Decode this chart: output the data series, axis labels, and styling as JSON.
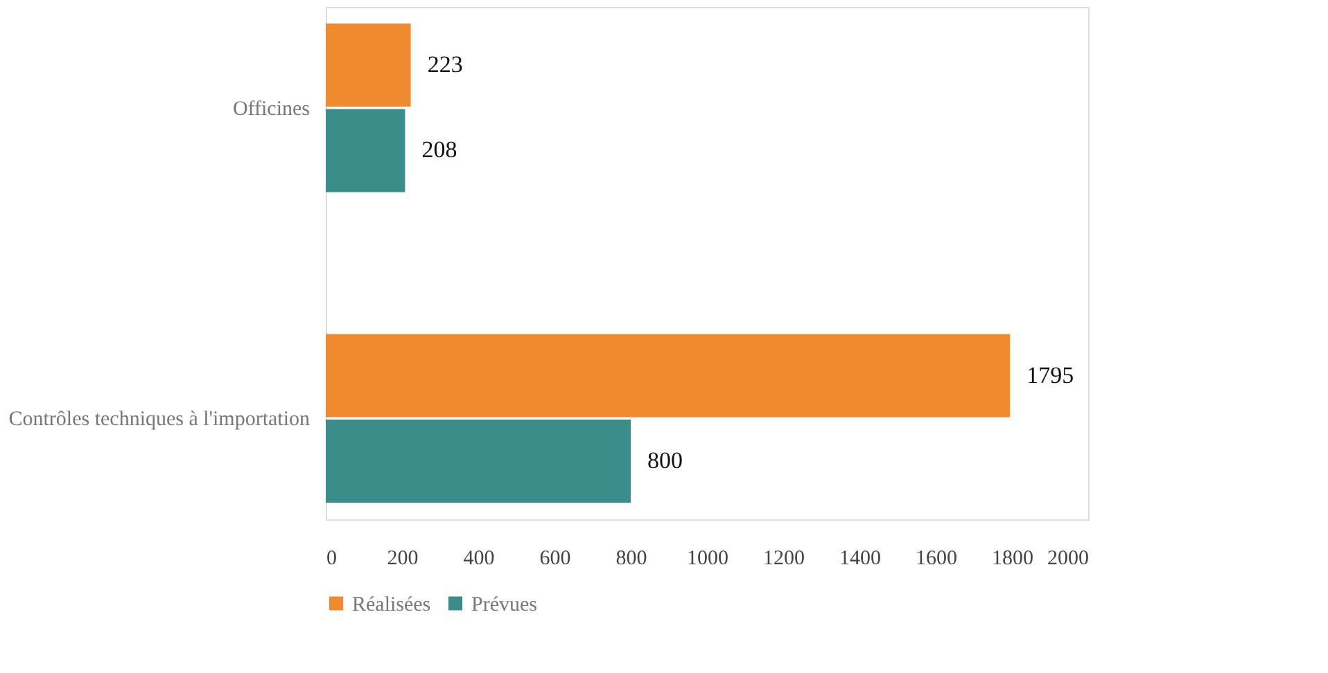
{
  "chart_data": {
    "type": "bar",
    "orientation": "horizontal",
    "categories": [
      "Officines",
      "Contrôles techniques à l'importation"
    ],
    "series": [
      {
        "name": "Réalisées",
        "color": "#f08a2e",
        "values": [
          223,
          1795
        ]
      },
      {
        "name": "Prévues",
        "color": "#3a8c8a",
        "values": [
          208,
          800
        ]
      }
    ],
    "xlim": [
      0,
      2000
    ],
    "xticks": [
      0,
      200,
      400,
      600,
      800,
      1000,
      1200,
      1400,
      1600,
      1800,
      2000
    ],
    "data_labels": true,
    "legend": "bottom",
    "grid": false
  }
}
